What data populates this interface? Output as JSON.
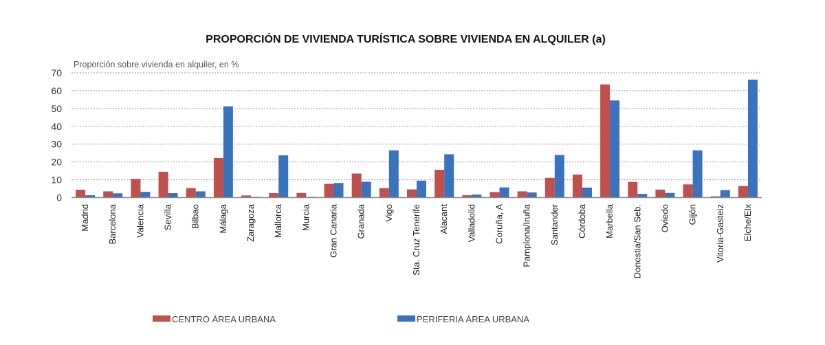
{
  "chart_data": {
    "type": "bar",
    "title": "PROPORCIÓN DE VIVIENDA TURÍSTICA SOBRE VIVIENDA EN ALQUILER (a)",
    "subtitle": "Proporción sobre vivienda en alquiler, en %",
    "xlabel": "",
    "ylabel": "Proporción sobre vivienda en alquiler, en %",
    "ylim": [
      0,
      70
    ],
    "yticks": [
      0,
      10,
      20,
      30,
      40,
      50,
      60,
      70
    ],
    "grid": true,
    "legend_position": "bottom",
    "categories": [
      "Madrid",
      "Barcelona",
      "Valencia",
      "Sevilla",
      "Bilbao",
      "Málaga",
      "Zaragoza",
      "Mallorca",
      "Murcia",
      "Gran Canaria",
      "Granada",
      "Vigo",
      "Sta. Cruz Tenerife",
      "Alacant",
      "Valladolid",
      "Coruña, A",
      "Pamplona/Iruña",
      "Santander",
      "Córdoba",
      "Marbella",
      "Donostia/San Seb.",
      "Oviedo",
      "Gijón",
      "Vitoria-Gasteiz",
      "Elche/Elx"
    ],
    "series": [
      {
        "name": "CENTRO ÁREA URBANA",
        "color": "#C0504D",
        "values": [
          4.4,
          3.5,
          10.5,
          14.5,
          5.3,
          22.2,
          1.2,
          2.5,
          2.6,
          7.7,
          13.5,
          5.3,
          4.6,
          15.6,
          1.3,
          3.1,
          3.5,
          11.1,
          12.9,
          63.5,
          8.8,
          4.5,
          7.4,
          0.7,
          6.5
        ]
      },
      {
        "name": "PERIFERIA ÁREA URBANA",
        "color": "#3A72BD",
        "values": [
          1.3,
          2.4,
          3.2,
          2.5,
          3.5,
          51.2,
          0.4,
          23.7,
          0.4,
          8.2,
          8.9,
          26.5,
          9.5,
          24.3,
          1.7,
          5.7,
          2.9,
          23.9,
          5.6,
          54.5,
          2.1,
          2.6,
          26.5,
          4.2,
          66.2
        ]
      }
    ]
  }
}
